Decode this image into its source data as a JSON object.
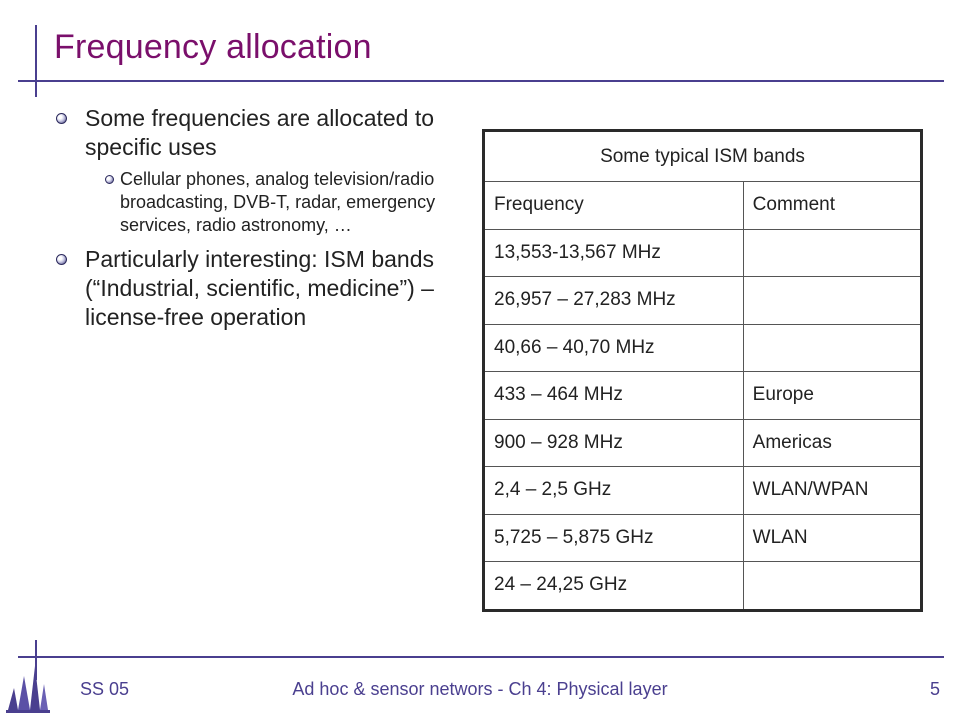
{
  "slide": {
    "title": "Frequency allocation",
    "bullets": [
      {
        "level": 1,
        "text": "Some frequencies are allocated to specific uses"
      },
      {
        "level": 2,
        "text": "Cellular phones, analog television/radio broadcasting, DVB-T, radar, emergency services, radio astronomy, …"
      },
      {
        "level": 1,
        "text": "Particularly interesting: ISM bands (“Industrial, scientific, medicine”) – license-free operation"
      }
    ]
  },
  "table": {
    "caption": "Some typical ISM bands",
    "headers": [
      "Frequency",
      "Comment"
    ],
    "rows": [
      [
        "13,553-13,567 MHz",
        ""
      ],
      [
        "26,957 – 27,283 MHz",
        ""
      ],
      [
        "40,66 – 40,70 MHz",
        ""
      ],
      [
        "433 – 464 MHz",
        "Europe"
      ],
      [
        "900 – 928 MHz",
        "Americas"
      ],
      [
        "2,4 – 2,5 GHz",
        "WLAN/WPAN"
      ],
      [
        "5,725 – 5,875 GHz",
        "WLAN"
      ],
      [
        "24 – 24,25 GHz",
        ""
      ]
    ]
  },
  "footer": {
    "left": "SS 05",
    "center": "Ad hoc & sensor networs - Ch 4: Physical layer",
    "page": "5"
  },
  "colors": {
    "title": "#7a0f6b",
    "accent": "#4a3f8f"
  },
  "icons": {
    "logo": "university-logo-icon",
    "bullet": "sphere-bullet-icon"
  }
}
